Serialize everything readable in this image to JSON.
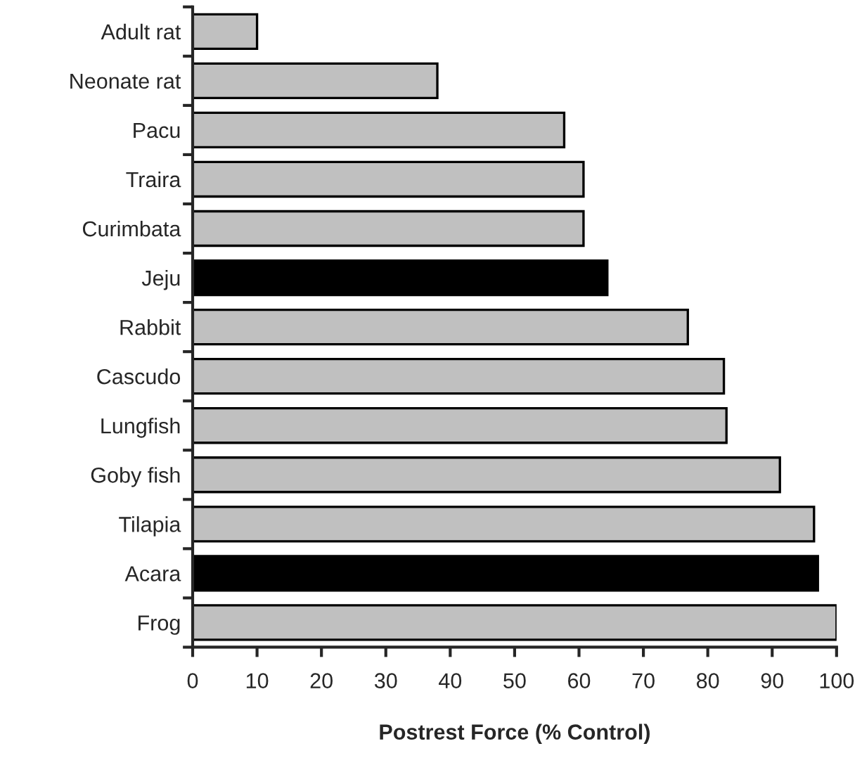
{
  "chart_data": {
    "type": "bar",
    "orientation": "horizontal",
    "xlabel": "Postrest Force (% Control)",
    "categories": [
      "Adult rat",
      "Neonate rat",
      "Pacu",
      "Traira",
      "Curimbata",
      "Jeju",
      "Rabbit",
      "Cascudo",
      "Lungfish",
      "Goby fish",
      "Tilapia",
      "Acara",
      "Frog"
    ],
    "values": [
      10,
      38,
      57.7,
      60.7,
      60.7,
      64.4,
      76.9,
      82.5,
      82.9,
      91.2,
      96.5,
      97.1,
      100
    ],
    "colors": [
      "#c0c0c0",
      "#c0c0c0",
      "#c0c0c0",
      "#c0c0c0",
      "#c0c0c0",
      "#000000",
      "#c0c0c0",
      "#c0c0c0",
      "#c0c0c0",
      "#c0c0c0",
      "#c0c0c0",
      "#000000",
      "#c0c0c0"
    ],
    "xlim": [
      0,
      100
    ],
    "xticks": [
      0,
      10,
      20,
      30,
      40,
      50,
      60,
      70,
      80,
      90,
      100
    ],
    "grid": false,
    "legend": false
  }
}
